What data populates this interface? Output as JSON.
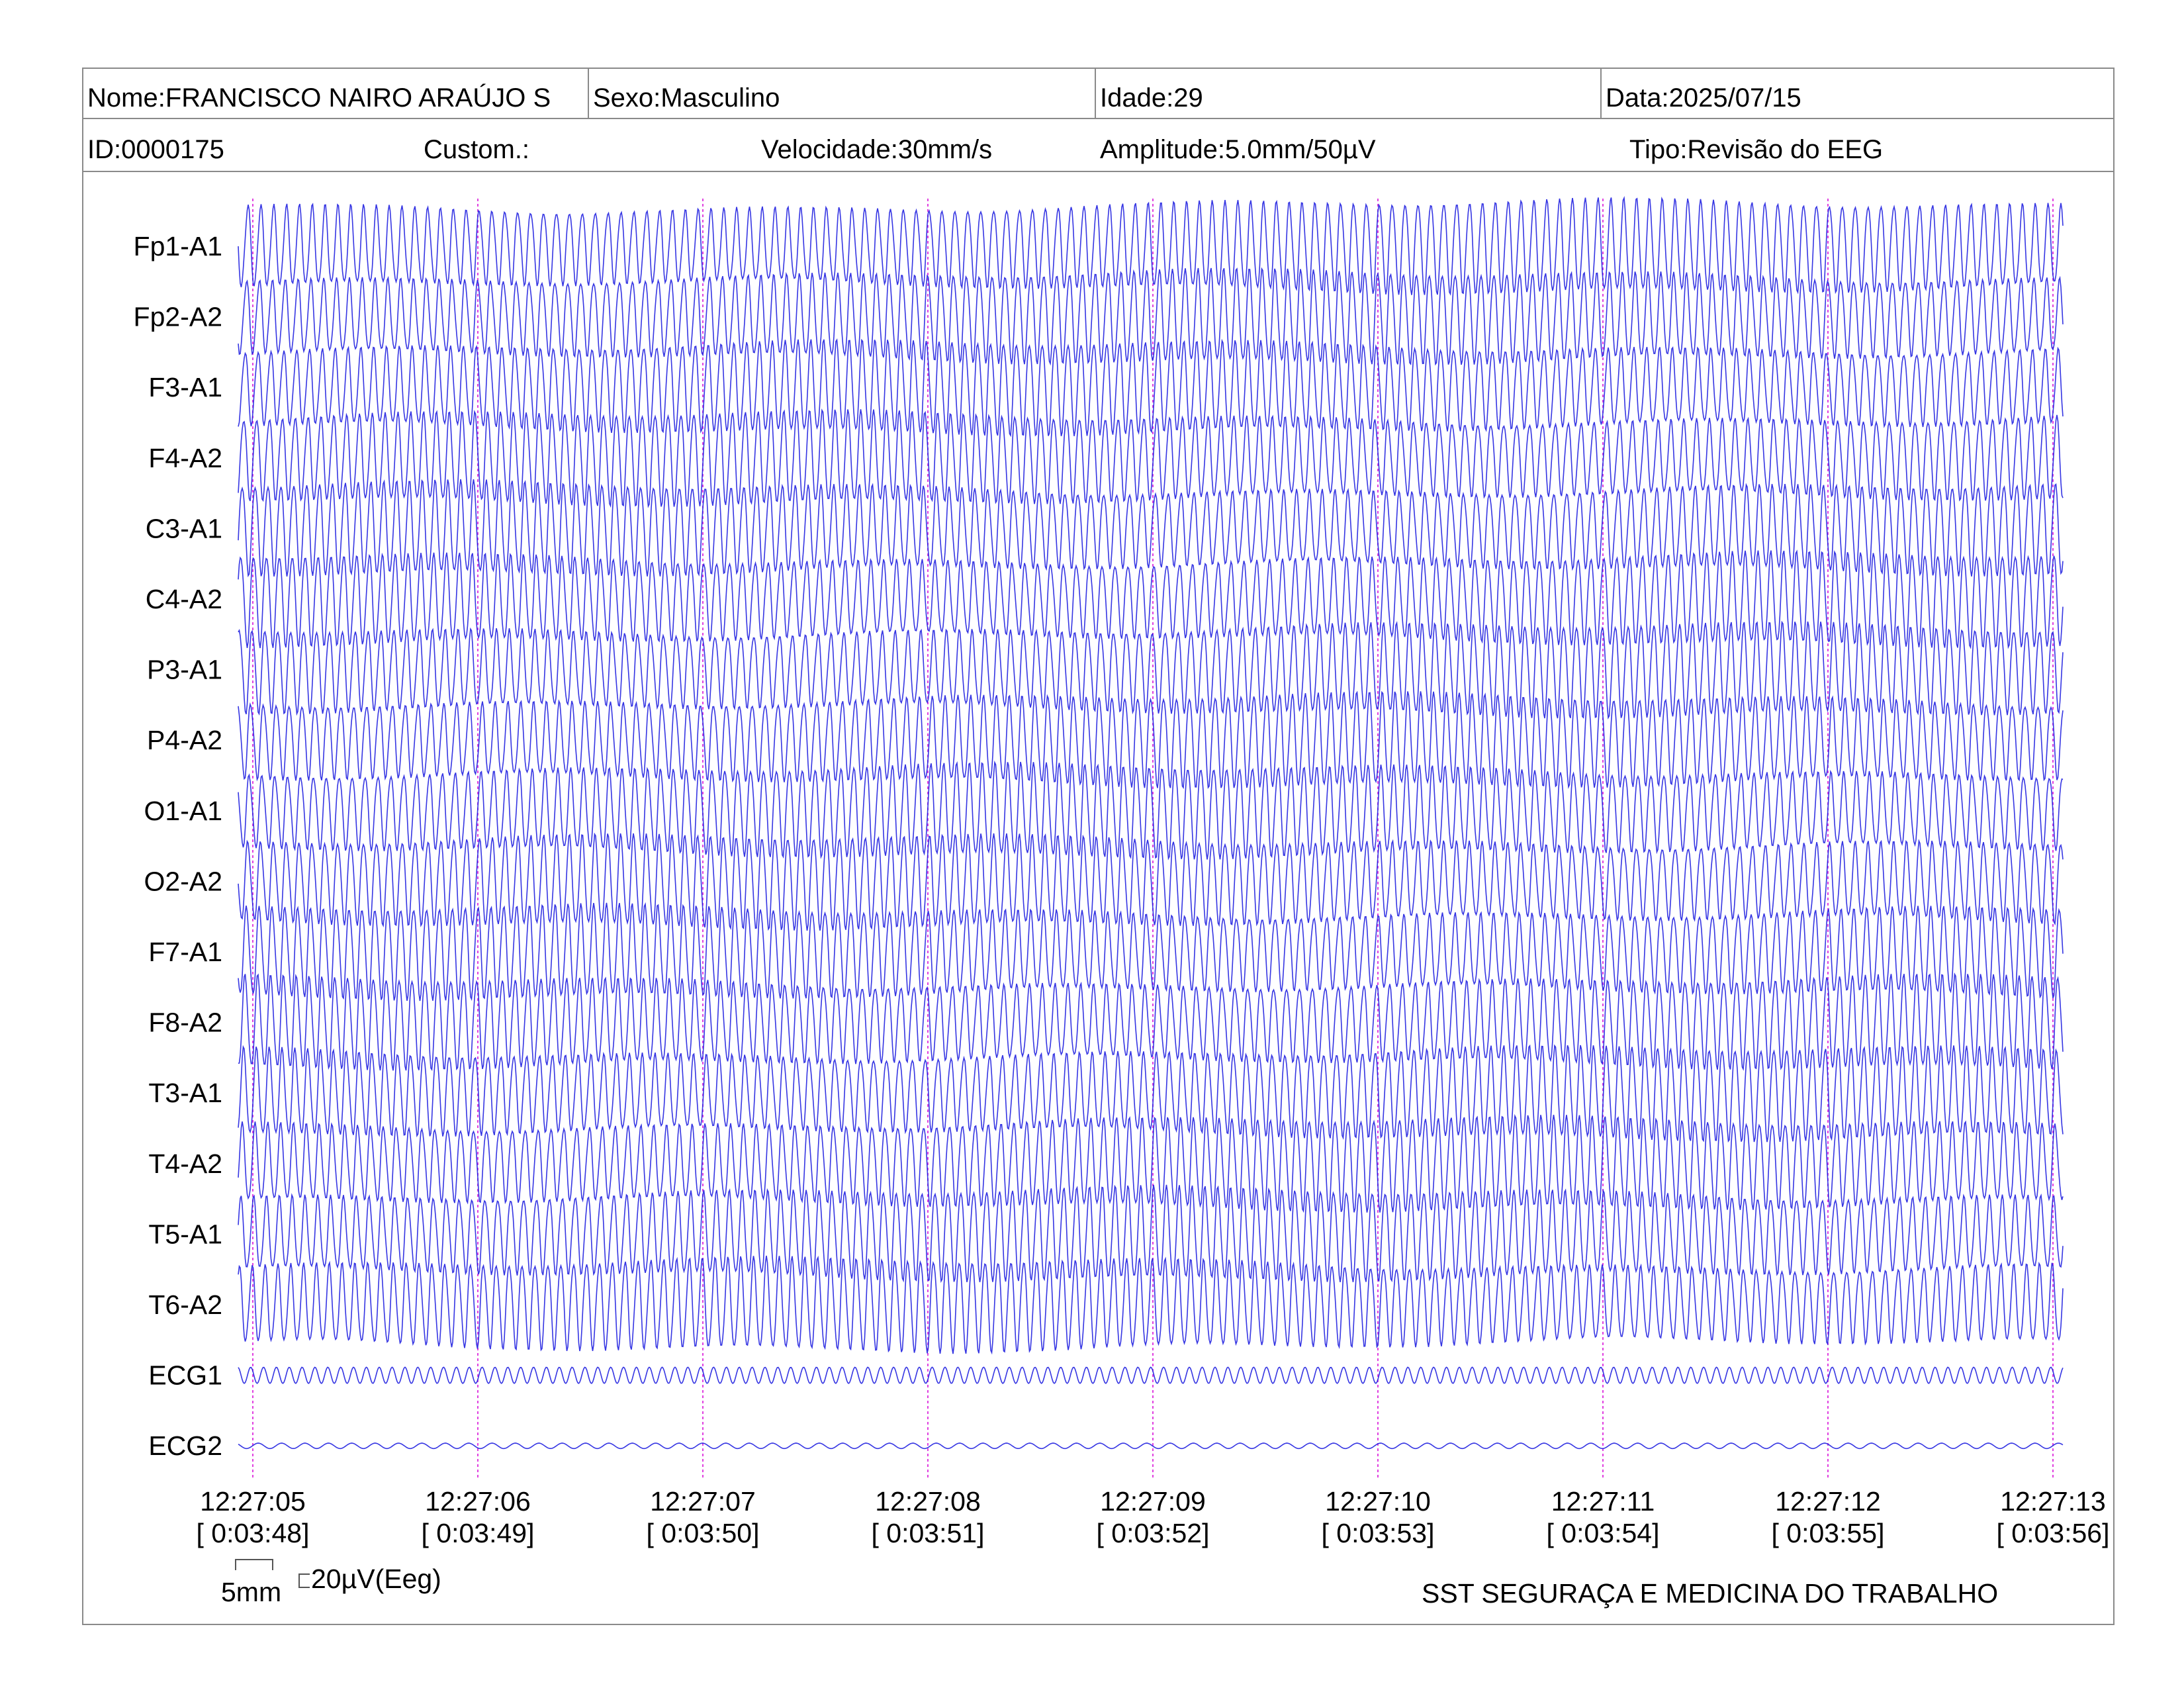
{
  "header": {
    "name_label": "Nome:",
    "name_value": "FRANCISCO NAIRO ARAÚJO S",
    "sex_label": "Sexo:",
    "sex_value": "Masculino",
    "age_label": "Idade:",
    "age_value": "29",
    "date_label": "Data:",
    "date_value": "2025/07/15",
    "id_label": "ID:",
    "id_value": "0000175",
    "custom_label": "Custom.:",
    "speed_label": "Velocidade:",
    "speed_value": "30mm/s",
    "amplitude_label": "Amplitude:",
    "amplitude_value": "5.0mm/50µV",
    "type_label": "Tipo:",
    "type_value": "Revisão do EEG"
  },
  "chart_data": {
    "type": "line",
    "x_unit": "time",
    "channels": [
      "Fp1-A1",
      "Fp2-A2",
      "F3-A1",
      "F4-A2",
      "C3-A1",
      "C4-A2",
      "P3-A1",
      "P4-A2",
      "O1-A1",
      "O2-A2",
      "F7-A1",
      "F8-A2",
      "T3-A1",
      "T4-A2",
      "T5-A1",
      "T6-A2",
      "ECG1",
      "ECG2"
    ],
    "time_ticks": [
      "12:27:05",
      "12:27:06",
      "12:27:07",
      "12:27:08",
      "12:27:09",
      "12:27:10",
      "12:27:11",
      "12:27:12",
      "12:27:13"
    ],
    "elapsed_ticks": [
      "[ 0:03:48]",
      "[ 0:03:49]",
      "[ 0:03:50]",
      "[ 0:03:51]",
      "[ 0:03:52]",
      "[ 0:03:53]",
      "[ 0:03:54]",
      "[ 0:03:55]",
      "[ 0:03:56]"
    ],
    "eeg_cycles_per_second": 17.5,
    "eeg_amplitude_uV": 180,
    "ecg1_amplitude_uV": 18,
    "ecg2_amplitude_uV": 6,
    "grid_lines": "vertical dotted at each second",
    "trace_color": "#2020e0",
    "grid_color": "#e040e0"
  },
  "scale": {
    "mm_label": "5mm",
    "uv_label": "20µV(Eeg)"
  },
  "footer": {
    "text": "SST SEGURAÇA E MEDICINA DO TRABALHO"
  }
}
